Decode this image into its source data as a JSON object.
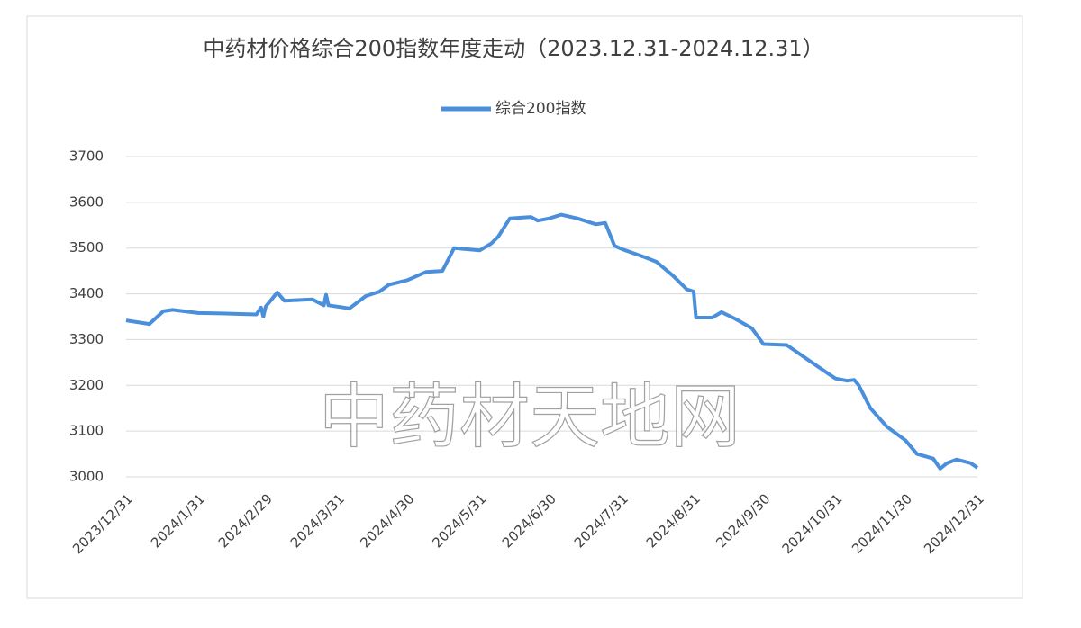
{
  "chart_data": {
    "type": "line",
    "title": "中药材价格综合200指数年度走动（2023.12.31-2024.12.31）",
    "watermark": "中药材天地网",
    "x": [
      "2023/12/31",
      "2024/1/10",
      "2024/1/16",
      "2024/1/20",
      "2024/1/31",
      "2024/2/10",
      "2024/2/25",
      "2024/2/27",
      "2024/2/28",
      "2024/2/29",
      "2024/3/5",
      "2024/3/8",
      "2024/3/20",
      "2024/3/25",
      "2024/3/26",
      "2024/3/27",
      "2024/4/5",
      "2024/4/12",
      "2024/4/18",
      "2024/4/22",
      "2024/4/30",
      "2024/5/8",
      "2024/5/15",
      "2024/5/20",
      "2024/5/31",
      "2024/6/5",
      "2024/6/8",
      "2024/6/13",
      "2024/6/22",
      "2024/6/25",
      "2024/6/30",
      "2024/7/5",
      "2024/7/12",
      "2024/7/20",
      "2024/7/24",
      "2024/7/28",
      "2024/7/31",
      "2024/8/10",
      "2024/8/15",
      "2024/8/22",
      "2024/8/28",
      "2024/8/31",
      "2024/9/1",
      "2024/9/8",
      "2024/9/12",
      "2024/9/18",
      "2024/9/25",
      "2024/9/30",
      "2024/10/10",
      "2024/10/18",
      "2024/10/28",
      "2024/10/31",
      "2024/11/5",
      "2024/11/8",
      "2024/11/10",
      "2024/11/15",
      "2024/11/22",
      "2024/11/30",
      "2024/12/5",
      "2024/12/12",
      "2024/12/15",
      "2024/12/18",
      "2024/12/22",
      "2024/12/28",
      "2024/12/31"
    ],
    "series": [
      {
        "name": "综合200指数",
        "color": "#4a8fdc",
        "values": [
          3342,
          3334,
          3362,
          3365,
          3358,
          3357,
          3355,
          3370,
          3350,
          3372,
          3403,
          3385,
          3388,
          3375,
          3398,
          3375,
          3368,
          3395,
          3405,
          3420,
          3430,
          3448,
          3450,
          3500,
          3495,
          3510,
          3525,
          3565,
          3568,
          3560,
          3565,
          3573,
          3565,
          3552,
          3555,
          3505,
          3498,
          3480,
          3470,
          3440,
          3410,
          3405,
          3348,
          3348,
          3360,
          3345,
          3325,
          3290,
          3288,
          3260,
          3225,
          3215,
          3210,
          3212,
          3200,
          3150,
          3110,
          3080,
          3050,
          3040,
          3018,
          3030,
          3038,
          3030,
          3020
        ]
      }
    ],
    "xlim": [
      "2023/12/31",
      "2024/12/31"
    ],
    "xticks": [
      "2023/12/31",
      "2024/1/31",
      "2024/2/29",
      "2024/3/31",
      "2024/4/30",
      "2024/5/31",
      "2024/6/30",
      "2024/7/31",
      "2024/8/31",
      "2024/9/30",
      "2024/10/31",
      "2024/11/30",
      "2024/12/31"
    ],
    "ylim": [
      3000,
      3700
    ],
    "yticks": [
      3000,
      3100,
      3200,
      3300,
      3400,
      3500,
      3600,
      3700
    ],
    "grid": true
  }
}
